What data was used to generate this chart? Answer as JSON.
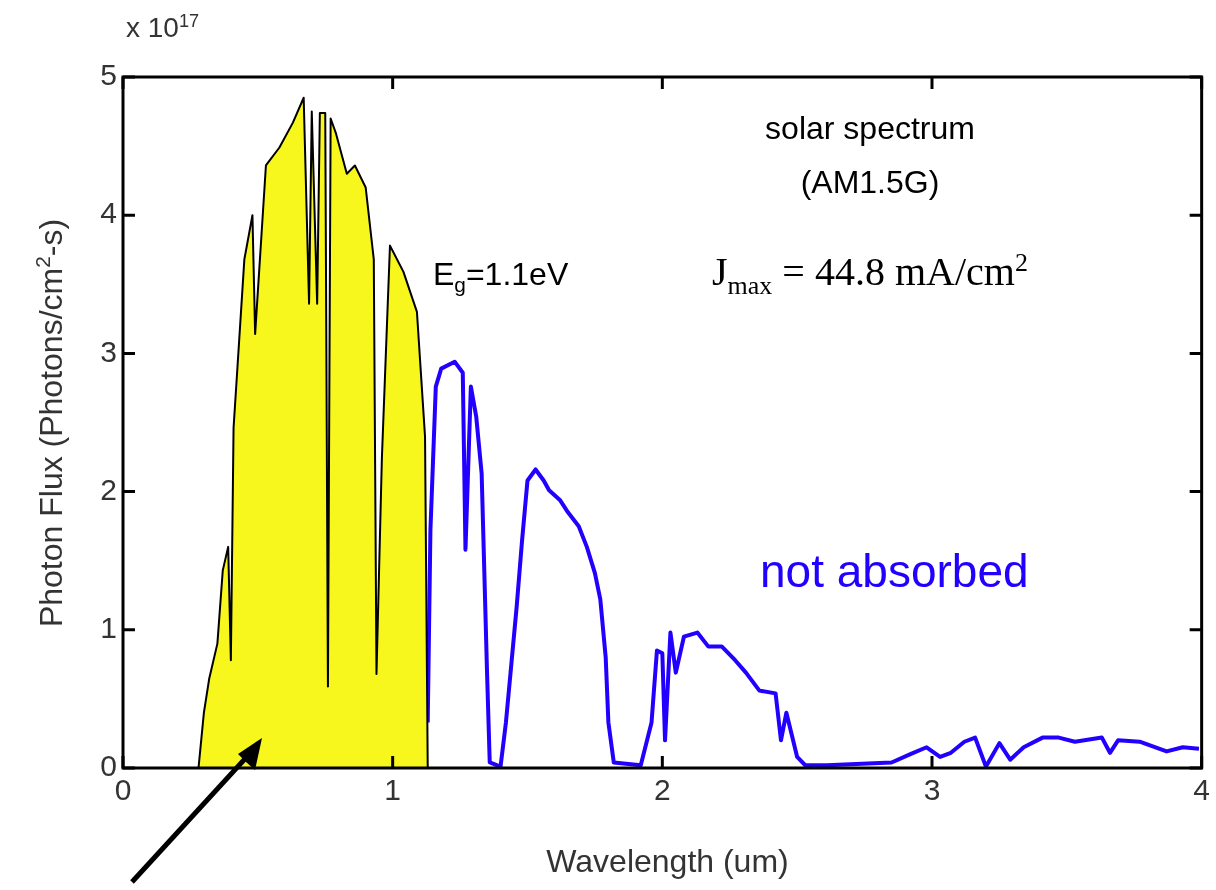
{
  "chart_data": {
    "type": "area",
    "xlabel": "Wavelength (um)",
    "ylabel": "Photon Flux (Photons/cm$^{2}$-s)",
    "annotations": [
      "solar spectrum",
      "(AM1.5G)",
      "E$_{g}$=1.1eV",
      "J$_{max}$ = 44.8 mA/cm$^{2}$",
      "not absorbed",
      "x 10$^{17}$"
    ],
    "xlim": [
      0,
      4
    ],
    "xticks": [
      0,
      1,
      2,
      3,
      4
    ],
    "ylim": [
      0,
      5
    ],
    "yticks": [
      0,
      1,
      2,
      3,
      4,
      5
    ],
    "grid": false,
    "legend": false,
    "marker": "none",
    "line_style": "solid",
    "series": [
      {
        "color": "#f7f71e",
        "x": [
          0.28,
          0.3,
          0.32,
          0.35,
          0.37,
          0.39,
          0.4,
          0.41,
          0.43,
          0.45,
          0.48,
          0.49,
          0.53,
          0.58,
          0.63,
          0.67,
          0.69,
          0.7,
          0.72,
          0.73,
          0.75,
          0.76,
          0.77,
          0.79,
          0.83,
          0.86,
          0.9,
          0.93,
          0.94,
          0.96,
          0.99,
          1.04,
          1.09,
          1.12,
          1.13
        ],
        "values": [
          0,
          0.4,
          0.65,
          0.9,
          1.43,
          1.6,
          0.78,
          2.46,
          3.07,
          3.68,
          4.0,
          3.14,
          4.36,
          4.49,
          4.67,
          4.85,
          3.36,
          4.75,
          3.36,
          4.74,
          4.74,
          0.59,
          4.7,
          4.59,
          4.3,
          4.36,
          4.2,
          3.68,
          0.68,
          2.24,
          3.78,
          3.59,
          3.3,
          2.4,
          0
        ]
      },
      {
        "type": "line",
        "color": "#2200ff",
        "x": [
          1.13,
          1.14,
          1.16,
          1.18,
          1.23,
          1.26,
          1.27,
          1.29,
          1.31,
          1.33,
          1.34,
          1.35,
          1.36,
          1.4,
          1.42,
          1.46,
          1.48,
          1.5,
          1.53,
          1.56,
          1.58,
          1.62,
          1.65,
          1.69,
          1.72,
          1.75,
          1.77,
          1.79,
          1.8,
          1.82,
          1.92,
          1.96,
          1.98,
          2.0,
          2.01,
          2.03,
          2.05,
          2.08,
          2.13,
          2.17,
          2.22,
          2.27,
          2.31,
          2.36,
          2.42,
          2.44,
          2.46,
          2.5,
          2.53,
          2.61,
          2.85,
          2.92,
          2.98,
          3.03,
          3.07,
          3.12,
          3.16,
          3.2,
          3.25,
          3.29,
          3.34,
          3.41,
          3.47,
          3.53,
          3.63,
          3.66,
          3.69,
          3.77,
          3.87,
          3.93,
          3.99
        ],
        "values": [
          0.33,
          1.72,
          2.76,
          2.89,
          2.94,
          2.86,
          1.58,
          2.76,
          2.54,
          2.13,
          1.41,
          0.69,
          0.04,
          0.01,
          0.33,
          1.17,
          1.65,
          2.08,
          2.16,
          2.08,
          2.01,
          1.94,
          1.85,
          1.75,
          1.6,
          1.41,
          1.22,
          0.8,
          0.33,
          0.04,
          0.02,
          0.33,
          0.85,
          0.83,
          0.2,
          0.98,
          0.69,
          0.95,
          0.98,
          0.88,
          0.88,
          0.78,
          0.69,
          0.56,
          0.54,
          0.2,
          0.4,
          0.08,
          0.02,
          0.02,
          0.04,
          0.1,
          0.15,
          0.08,
          0.11,
          0.19,
          0.22,
          0.01,
          0.18,
          0.06,
          0.15,
          0.22,
          0.22,
          0.19,
          0.22,
          0.11,
          0.2,
          0.19,
          0.12,
          0.15,
          0.14
        ]
      }
    ]
  }
}
